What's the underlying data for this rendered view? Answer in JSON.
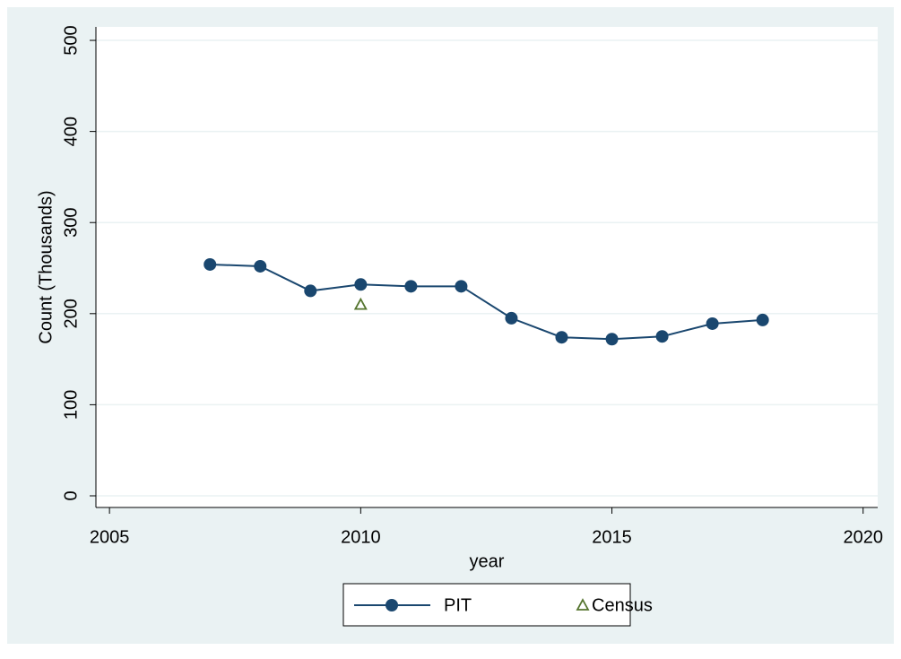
{
  "chart_data": {
    "type": "line",
    "x": [
      2007,
      2008,
      2009,
      2010,
      2011,
      2012,
      2013,
      2014,
      2015,
      2016,
      2017,
      2018
    ],
    "series": [
      {
        "name": "PIT",
        "color": "#1a476f",
        "marker": "circle",
        "connected": true,
        "values": [
          254,
          252,
          225,
          232,
          230,
          230,
          195,
          174,
          172,
          175,
          189,
          193
        ]
      },
      {
        "name": "Census",
        "color": "#55752f",
        "marker": "triangle",
        "connected": false,
        "values": [
          null,
          null,
          null,
          210,
          null,
          null,
          null,
          null,
          null,
          null,
          null,
          null
        ]
      }
    ],
    "xlabel": "year",
    "ylabel": "Count (Thousands)",
    "xlim": [
      2004.73,
      2020.29
    ],
    "xticks": [
      2005,
      2010,
      2015,
      2020
    ],
    "ylim": [
      -12.8,
      514.8
    ],
    "yticks": [
      0,
      100,
      200,
      300,
      400,
      500
    ],
    "grid": true,
    "legend": "bottom"
  }
}
